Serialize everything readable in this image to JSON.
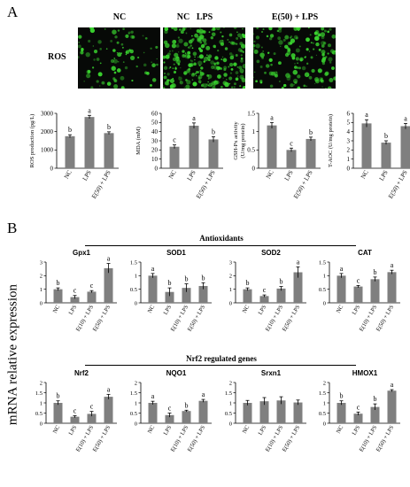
{
  "panel_a": {
    "letter": "A",
    "image_row": {
      "row_label": "ROS",
      "columns": [
        "NC",
        "LPS",
        "E(50) + LPS"
      ]
    }
  },
  "panel_b": {
    "letter": "B",
    "section1_title": "Antioxidants",
    "section2_title": "Nrf2 regulated genes",
    "y_axis_label": "mRNA relative expression"
  },
  "colors": {
    "bar": "#7f7f7f",
    "axis": "#000000",
    "fluor": "#39d12e"
  },
  "chart_data": [
    {
      "id": "ros",
      "type": "bar",
      "title": "",
      "xlabel": "",
      "ylabel": "ROS production (pg/L)",
      "categories": [
        "NC",
        "LPS",
        "E(50) + LPS"
      ],
      "values": [
        1750,
        2800,
        1920
      ],
      "errors": [
        80,
        90,
        70
      ],
      "letters": [
        "b",
        "a",
        "b"
      ],
      "ylim": [
        0,
        3000
      ],
      "ticks": [
        0,
        1000,
        2000,
        3000
      ]
    },
    {
      "id": "mda",
      "type": "bar",
      "title": "",
      "xlabel": "",
      "ylabel": "MDA (mM)",
      "categories": [
        "NC",
        "LPS",
        "E(50) + LPS"
      ],
      "values": [
        23.5,
        46.5,
        31.5
      ],
      "errors": [
        2,
        3,
        3
      ],
      "letters": [
        "c",
        "a",
        "b"
      ],
      "ylim": [
        0,
        60
      ],
      "ticks": [
        0,
        10,
        20,
        30,
        40,
        50,
        60
      ]
    },
    {
      "id": "gshpx",
      "type": "bar",
      "title": "",
      "xlabel": "",
      "ylabel": "GSH-Px activity (U/mg protein)",
      "categories": [
        "NC",
        "LPS",
        "E(50) + LPS"
      ],
      "values": [
        1.17,
        0.5,
        0.8
      ],
      "errors": [
        0.08,
        0.05,
        0.05
      ],
      "letters": [
        "a",
        "c",
        "b"
      ],
      "ylim": [
        0,
        1.5
      ],
      "ticks": [
        0,
        0.5,
        1,
        1.5
      ]
    },
    {
      "id": "taoc",
      "type": "bar",
      "title": "",
      "xlabel": "",
      "ylabel": "T-AOC (U/mg protein)",
      "categories": [
        "NC",
        "LPS",
        "E(50) + LPS"
      ],
      "values": [
        4.9,
        2.8,
        4.6
      ],
      "errors": [
        0.4,
        0.2,
        0.3
      ],
      "letters": [
        "a",
        "b",
        "a"
      ],
      "ylim": [
        0,
        6
      ],
      "ticks": [
        0,
        1,
        2,
        3,
        4,
        5,
        6
      ]
    },
    {
      "id": "gpx1",
      "type": "bar",
      "title": "Gpx1",
      "xlabel": "",
      "ylabel": "",
      "categories": [
        "NC",
        "LPS",
        "E(10) + LPS",
        "E(50) + LPS"
      ],
      "values": [
        1.0,
        0.42,
        0.82,
        2.55
      ],
      "errors": [
        0.1,
        0.12,
        0.08,
        0.35
      ],
      "letters": [
        "b",
        "c",
        "c",
        "a"
      ],
      "ylim": [
        0,
        3
      ],
      "ticks": [
        0,
        1,
        2,
        3
      ]
    },
    {
      "id": "sod1",
      "type": "bar",
      "title": "SOD1",
      "xlabel": "",
      "ylabel": "",
      "categories": [
        "NC",
        "LPS",
        "E(10) + LPS",
        "E(50) + LPS"
      ],
      "values": [
        1.0,
        0.4,
        0.55,
        0.62
      ],
      "errors": [
        0.08,
        0.15,
        0.15,
        0.12
      ],
      "letters": [
        "a",
        "b",
        "b",
        "b"
      ],
      "ylim": [
        0,
        1.5
      ],
      "ticks": [
        0,
        0.5,
        1,
        1.5
      ]
    },
    {
      "id": "sod2",
      "type": "bar",
      "title": "SOD2",
      "xlabel": "",
      "ylabel": "",
      "categories": [
        "NC",
        "LPS",
        "E(10) + LPS",
        "E(50) + LPS"
      ],
      "values": [
        1.0,
        0.5,
        1.05,
        2.25
      ],
      "errors": [
        0.1,
        0.08,
        0.15,
        0.4
      ],
      "letters": [
        "b",
        "c",
        "b",
        "a"
      ],
      "ylim": [
        0,
        3
      ],
      "ticks": [
        0,
        1,
        2,
        3
      ]
    },
    {
      "id": "cat",
      "type": "bar",
      "title": "CAT",
      "xlabel": "",
      "ylabel": "",
      "categories": [
        "NC",
        "LPS",
        "E(10) + LPS",
        "E(50) + LPS"
      ],
      "values": [
        1.0,
        0.6,
        0.87,
        1.13
      ],
      "errors": [
        0.08,
        0.04,
        0.08,
        0.07
      ],
      "letters": [
        "a",
        "c",
        "b",
        "a"
      ],
      "ylim": [
        0,
        1.5
      ],
      "ticks": [
        0,
        0.5,
        1,
        1.5
      ]
    },
    {
      "id": "nrf2",
      "type": "bar",
      "title": "Nrf2",
      "xlabel": "",
      "ylabel": "",
      "categories": [
        "NC",
        "LPS",
        "E(10) + LPS",
        "E(50) + LPS"
      ],
      "values": [
        1.0,
        0.32,
        0.46,
        1.3
      ],
      "errors": [
        0.1,
        0.05,
        0.12,
        0.12
      ],
      "letters": [
        "b",
        "c",
        "c",
        "a"
      ],
      "ylim": [
        0,
        2
      ],
      "ticks": [
        0,
        0.5,
        1,
        1.5,
        2
      ]
    },
    {
      "id": "nqo1",
      "type": "bar",
      "title": "NQO1",
      "xlabel": "",
      "ylabel": "",
      "categories": [
        "NC",
        "LPS",
        "E(10) + LPS",
        "E(50) + LPS"
      ],
      "values": [
        1.0,
        0.4,
        0.6,
        1.1
      ],
      "errors": [
        0.08,
        0.1,
        0.04,
        0.07
      ],
      "letters": [
        "a",
        "c",
        "b",
        "a"
      ],
      "ylim": [
        0,
        2
      ],
      "ticks": [
        0,
        0.5,
        1,
        1.5,
        2
      ]
    },
    {
      "id": "srxn1",
      "type": "bar",
      "title": "Srxn1",
      "xlabel": "",
      "ylabel": "",
      "categories": [
        "NC",
        "LPS",
        "E(10) + LPS",
        "E(50) + LPS"
      ],
      "values": [
        1.0,
        1.08,
        1.12,
        1.02
      ],
      "errors": [
        0.12,
        0.18,
        0.18,
        0.12
      ],
      "letters": [
        "",
        "",
        "",
        ""
      ],
      "ylim": [
        0,
        2
      ],
      "ticks": [
        0,
        0.5,
        1,
        1.5,
        2
      ]
    },
    {
      "id": "hmox1",
      "type": "bar",
      "title": "HMOX1",
      "xlabel": "",
      "ylabel": "",
      "categories": [
        "NC",
        "LPS",
        "E(10) + LPS",
        "E(50) + LPS"
      ],
      "values": [
        1.0,
        0.47,
        0.8,
        1.6
      ],
      "errors": [
        0.1,
        0.08,
        0.15,
        0.05
      ],
      "letters": [
        "b",
        "c",
        "b",
        "a"
      ],
      "ylim": [
        0,
        2
      ],
      "ticks": [
        0,
        0.5,
        1,
        1.5,
        2
      ]
    }
  ]
}
